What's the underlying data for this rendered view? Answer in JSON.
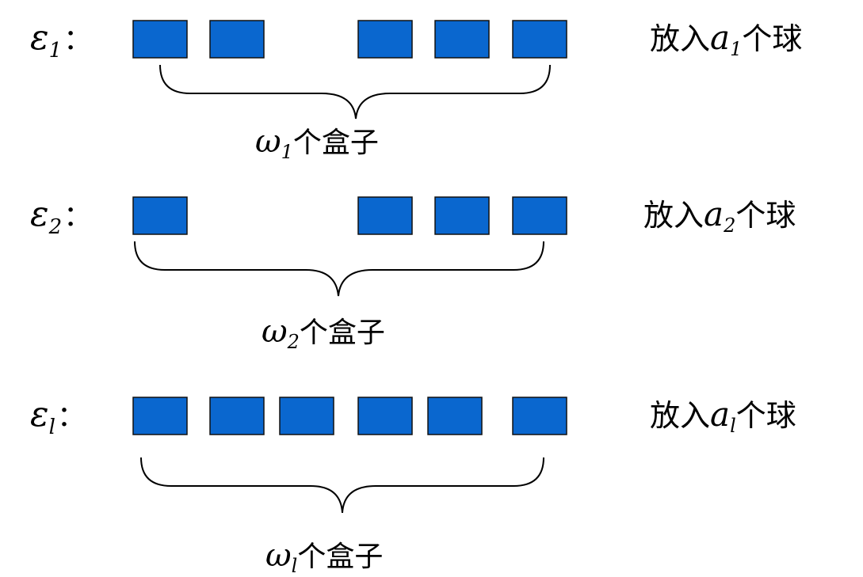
{
  "colors": {
    "box_fill": "#0a67cf",
    "box_stroke": "#111111",
    "text": "#000000"
  },
  "rows": [
    {
      "level": {
        "symbol": "ε",
        "subscript": "1",
        "colon": "："
      },
      "boxes_shown": 5,
      "gap_after_box": 2,
      "brace_label": {
        "symbol": "ω",
        "subscript": "1",
        "text": "个盒子"
      },
      "balls_label": {
        "prefix": "放入",
        "symbol": "a",
        "subscript": "1",
        "suffix": "个球"
      }
    },
    {
      "level": {
        "symbol": "ε",
        "subscript": "2",
        "colon": "："
      },
      "boxes_shown": 4,
      "gap_after_box": 1,
      "brace_label": {
        "symbol": "ω",
        "subscript": "2",
        "text": "个盒子"
      },
      "balls_label": {
        "prefix": "放入",
        "symbol": "a",
        "subscript": "2",
        "suffix": "个球"
      }
    },
    {
      "level": {
        "symbol": "ε",
        "subscript": "l",
        "colon": "："
      },
      "boxes_shown": 6,
      "gap_after_box": 0,
      "brace_label": {
        "symbol": "ω",
        "subscript": "l",
        "text": "个盒子"
      },
      "balls_label": {
        "prefix": "放入",
        "symbol": "a",
        "subscript": "l",
        "suffix": "个球"
      }
    }
  ]
}
